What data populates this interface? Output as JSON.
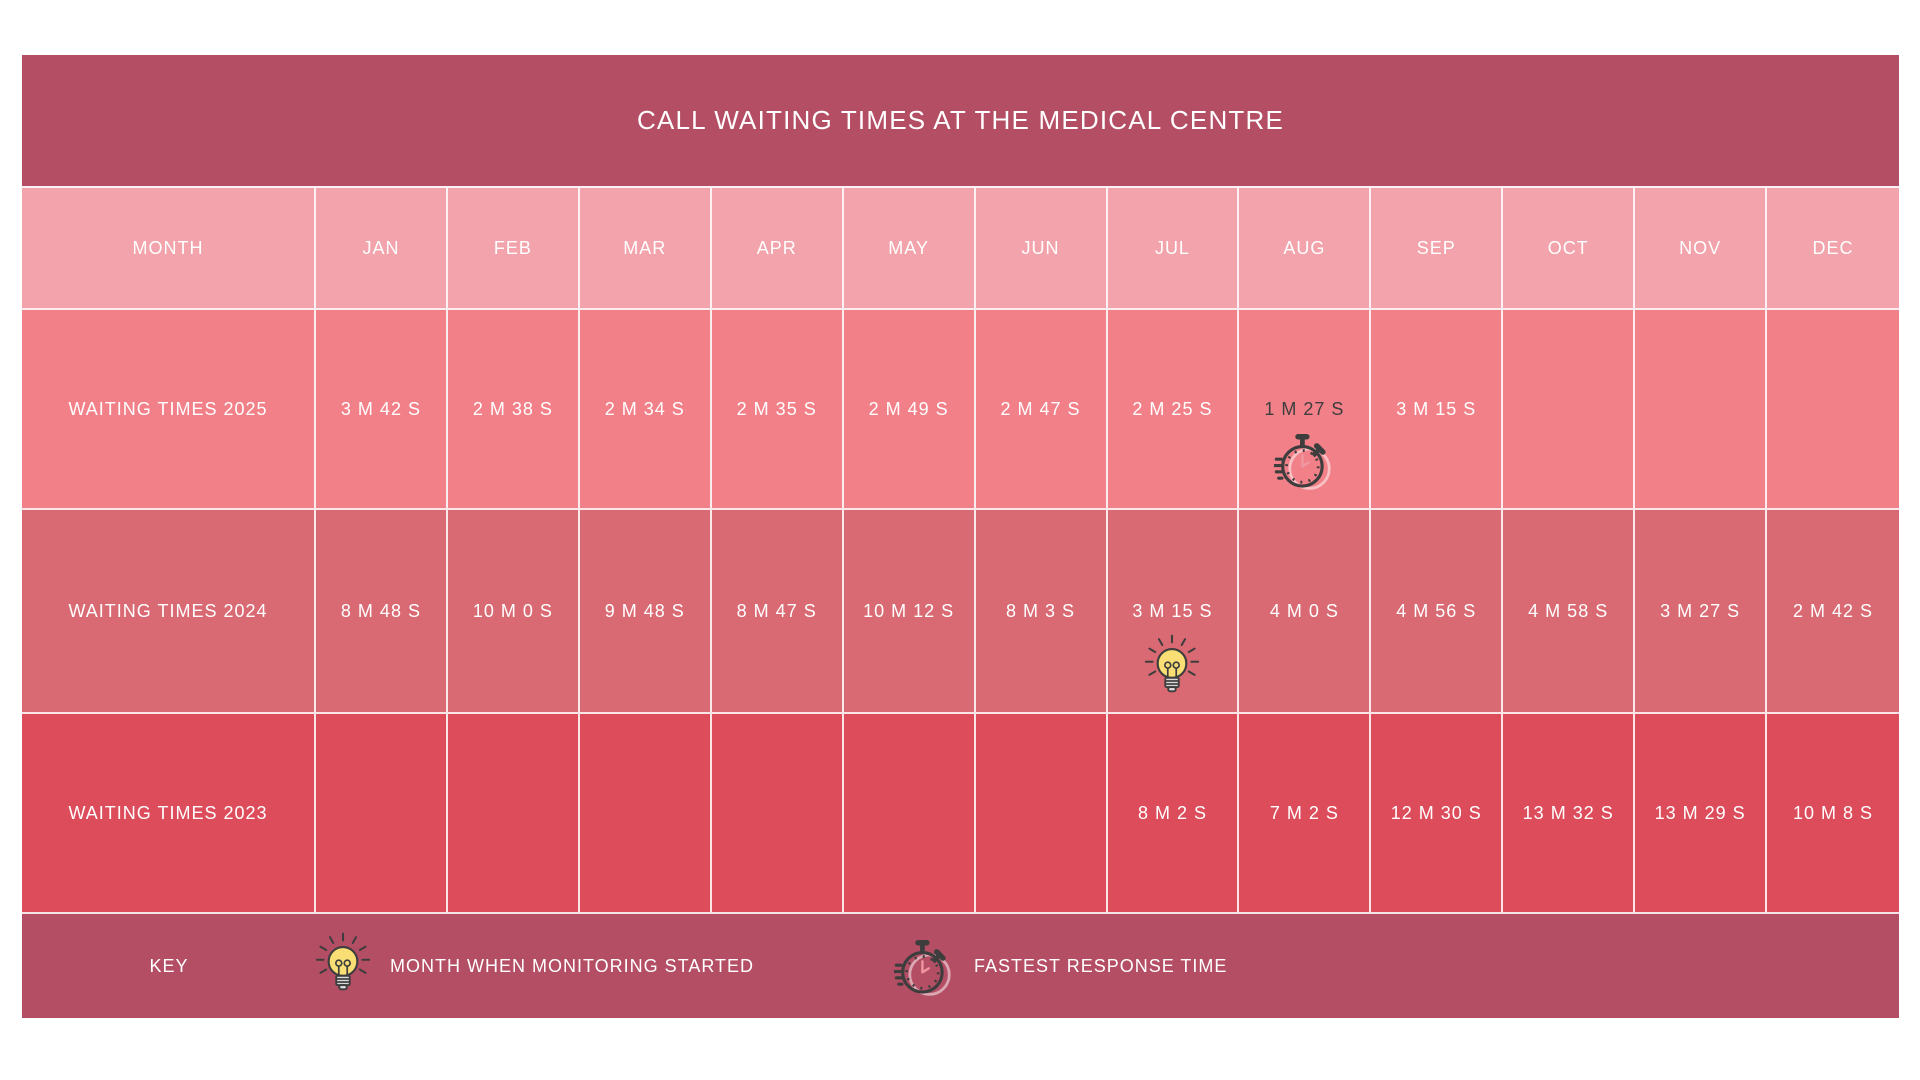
{
  "title": "CALL WAITING TIMES AT THE MEDICAL CENTRE",
  "chart_data": {
    "type": "table",
    "title": "CALL WAITING TIMES AT THE MEDICAL CENTRE",
    "columns": [
      "MONTH",
      "JAN",
      "FEB",
      "MAR",
      "APR",
      "MAY",
      "JUN",
      "JUL",
      "AUG",
      "SEP",
      "OCT",
      "NOV",
      "DEC"
    ],
    "rows": [
      {
        "label": "WAITING TIMES 2025",
        "values": [
          "3 M 42 S",
          "2 M 38 S",
          "2 M 34 S",
          "2 M 35 S",
          "2 M 49 S",
          "2 M 47 S",
          "2 M 25 S",
          "1 M 27 S",
          "3 M 15 S",
          "",
          "",
          ""
        ],
        "badge": {
          "month": "AUG",
          "icon": "stopwatch-icon",
          "meaning": "FASTEST RESPONSE TIME",
          "value_color": "#3d3d3d"
        }
      },
      {
        "label": "WAITING TIMES 2024",
        "values": [
          "8 M 48 S",
          "10 M 0 S",
          "9 M 48 S",
          "8 M 47 S",
          "10 M 12 S",
          "8 M 3 S",
          "3 M 15 S",
          "4 M 0 S",
          "4 M 56 S",
          "4 M 58 S",
          "3 M 27 S",
          "2 M 42 S"
        ],
        "badge": {
          "month": "JUL",
          "icon": "lightbulb-icon",
          "meaning": "MONTH WHEN MONITORING STARTED",
          "value_color": ""
        }
      },
      {
        "label": "WAITING TIMES 2023",
        "values": [
          "",
          "",
          "",
          "",
          "",
          "",
          "8 M 2 S",
          "7 M 2 S",
          "12 M 30 S",
          "13 M 32 S",
          "13 M 29 S",
          "10 M 8 S"
        ],
        "badge": null
      }
    ]
  },
  "key": {
    "label": "KEY",
    "items": [
      {
        "icon": "lightbulb-icon",
        "label": "MONTH WHEN MONITORING STARTED"
      },
      {
        "icon": "stopwatch-icon",
        "label": "FASTEST RESPONSE TIME"
      }
    ]
  },
  "colors": {
    "title_bar": "#b44e64",
    "key_bar": "#b44e64",
    "header_row": "#f2a3ab",
    "row_2025": "#f28089",
    "row_2024": "#d96a73",
    "row_2023": "#dc4c5b",
    "cell_text": "#ffffff",
    "dark_text": "#3d3d3d",
    "icon_dark": "#3d3d3d",
    "bulb_yellow": "#f8de74",
    "base_gray": "#d8d8d8",
    "watch_hands": "#ef97a1",
    "grid_line": "#ffffff"
  }
}
